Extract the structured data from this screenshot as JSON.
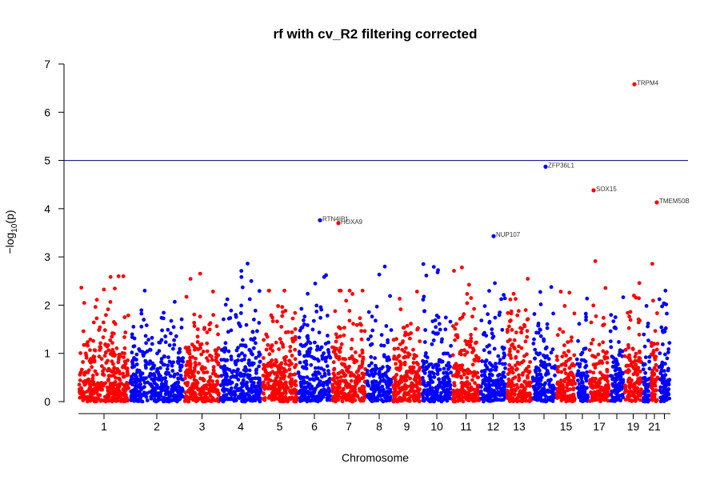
{
  "chart_data": {
    "type": "scatter",
    "title": "rf with cv_R2 filtering corrected",
    "xlabel": "Chromosome",
    "ylabel": "-log10(p)",
    "ylabel_parts": {
      "prefix": "−log",
      "sub": "10",
      "suffix": "(p)"
    },
    "ylim": [
      0,
      7
    ],
    "yticks": [
      0,
      1,
      2,
      3,
      4,
      5,
      6,
      7
    ],
    "significance_line": 5,
    "point_colors": [
      "#ff0000",
      "#0000ff"
    ],
    "line_color": "#000080",
    "chromosomes": [
      {
        "id": "1",
        "labeled": true
      },
      {
        "id": "2",
        "labeled": true
      },
      {
        "id": "3",
        "labeled": true
      },
      {
        "id": "4",
        "labeled": true
      },
      {
        "id": "5",
        "labeled": true
      },
      {
        "id": "6",
        "labeled": true
      },
      {
        "id": "7",
        "labeled": true
      },
      {
        "id": "8",
        "labeled": true
      },
      {
        "id": "9",
        "labeled": true
      },
      {
        "id": "10",
        "labeled": true
      },
      {
        "id": "11",
        "labeled": true
      },
      {
        "id": "12",
        "labeled": true
      },
      {
        "id": "13",
        "labeled": true
      },
      {
        "id": "14",
        "labeled": false
      },
      {
        "id": "15",
        "labeled": true
      },
      {
        "id": "16",
        "labeled": false
      },
      {
        "id": "17",
        "labeled": true
      },
      {
        "id": "18",
        "labeled": false
      },
      {
        "id": "19",
        "labeled": true
      },
      {
        "id": "20",
        "labeled": false
      },
      {
        "id": "21",
        "labeled": true
      },
      {
        "id": "22",
        "labeled": false
      }
    ],
    "annotated_points": [
      {
        "gene": "RTN4IP1",
        "chromosome": "6",
        "y": 3.76,
        "color": "blue"
      },
      {
        "gene": "HOXA9",
        "chromosome": "7",
        "y": 3.7,
        "color": "red"
      },
      {
        "gene": "NUP107",
        "chromosome": "12",
        "y": 3.43,
        "color": "blue"
      },
      {
        "gene": "ZFP36L1",
        "chromosome": "14",
        "y": 4.87,
        "color": "blue"
      },
      {
        "gene": "SOX15",
        "chromosome": "17",
        "y": 4.38,
        "color": "red"
      },
      {
        "gene": "TRPM4",
        "chromosome": "19",
        "y": 6.58,
        "color": "red"
      },
      {
        "gene": "TMEM50B",
        "chromosome": "21",
        "y": 4.13,
        "color": "red"
      }
    ]
  }
}
